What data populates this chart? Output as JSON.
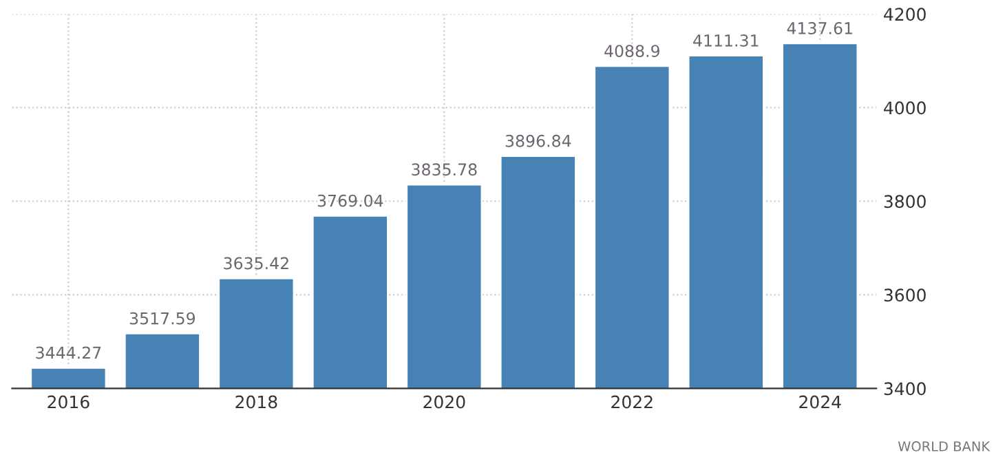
{
  "chart_data": {
    "type": "bar",
    "categories": [
      "2016",
      null,
      "2018",
      null,
      "2020",
      null,
      "2022",
      null,
      "2024"
    ],
    "values": [
      3444.27,
      3517.59,
      3635.42,
      3769.04,
      3835.78,
      3896.84,
      4088.9,
      4111.31,
      4137.61
    ],
    "color": "#4682b4",
    "data_labels": true,
    "ylim": [
      3400,
      4200
    ],
    "yticks": [
      3400,
      3600,
      3800,
      4000,
      4200
    ],
    "grid": true,
    "annotations": [
      "WORLD BANK"
    ]
  }
}
